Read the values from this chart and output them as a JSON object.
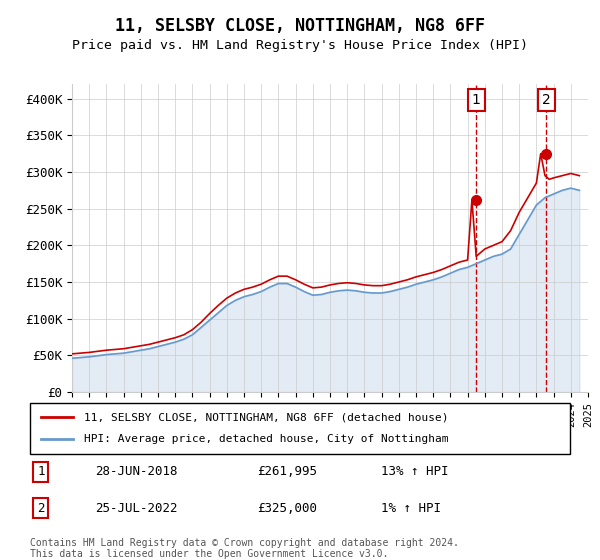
{
  "title": "11, SELSBY CLOSE, NOTTINGHAM, NG8 6FF",
  "subtitle": "Price paid vs. HM Land Registry's House Price Index (HPI)",
  "xlabel": "",
  "ylabel": "",
  "ylim": [
    0,
    420000
  ],
  "yticks": [
    0,
    50000,
    100000,
    150000,
    200000,
    250000,
    300000,
    350000,
    400000
  ],
  "ytick_labels": [
    "£0",
    "£50K",
    "£100K",
    "£150K",
    "£200K",
    "£250K",
    "£300K",
    "£350K",
    "£400K"
  ],
  "line1_color": "#cc0000",
  "line2_color": "#6699cc",
  "marker_color": "#cc0000",
  "annotation_bg": "#ddeeff",
  "annotation_border": "#cc0000",
  "sale1_date": "28-JUN-2018",
  "sale1_price": 261995,
  "sale1_hpi": "13% ↑ HPI",
  "sale2_date": "25-JUL-2022",
  "sale2_price": 325000,
  "sale2_hpi": "1% ↑ HPI",
  "legend_label1": "11, SELSBY CLOSE, NOTTINGHAM, NG8 6FF (detached house)",
  "legend_label2": "HPI: Average price, detached house, City of Nottingham",
  "footer": "Contains HM Land Registry data © Crown copyright and database right 2024.\nThis data is licensed under the Open Government Licence v3.0.",
  "hpi_years": [
    1995,
    1995.5,
    1996,
    1996.5,
    1997,
    1997.5,
    1998,
    1998.5,
    1999,
    1999.5,
    2000,
    2000.5,
    2001,
    2001.5,
    2002,
    2002.5,
    2003,
    2003.5,
    2004,
    2004.5,
    2005,
    2005.5,
    2006,
    2006.5,
    2007,
    2007.5,
    2008,
    2008.5,
    2009,
    2009.5,
    2010,
    2010.5,
    2011,
    2011.5,
    2012,
    2012.5,
    2013,
    2013.5,
    2014,
    2014.5,
    2015,
    2015.5,
    2016,
    2016.5,
    2017,
    2017.5,
    2018,
    2018.5,
    2019,
    2019.5,
    2020,
    2020.5,
    2021,
    2021.5,
    2022,
    2022.5,
    2023,
    2023.5,
    2024,
    2024.5
  ],
  "hpi_values": [
    46000,
    47000,
    48000,
    49500,
    51000,
    52000,
    53000,
    55000,
    57000,
    59000,
    62000,
    65000,
    68000,
    72000,
    78000,
    88000,
    98000,
    108000,
    118000,
    125000,
    130000,
    133000,
    137000,
    143000,
    148000,
    148000,
    143000,
    137000,
    132000,
    133000,
    136000,
    138000,
    139000,
    138000,
    136000,
    135000,
    135000,
    137000,
    140000,
    143000,
    147000,
    150000,
    153000,
    157000,
    162000,
    167000,
    170000,
    175000,
    180000,
    185000,
    188000,
    195000,
    215000,
    235000,
    255000,
    265000,
    270000,
    275000,
    278000,
    275000
  ],
  "property_years": [
    1995,
    1995.5,
    1996,
    1996.5,
    1997,
    1997.5,
    1998,
    1998.5,
    1999,
    1999.5,
    2000,
    2000.5,
    2001,
    2001.5,
    2002,
    2002.5,
    2003,
    2003.5,
    2004,
    2004.5,
    2005,
    2005.5,
    2006,
    2006.5,
    2007,
    2007.5,
    2008,
    2008.5,
    2009,
    2009.5,
    2010,
    2010.5,
    2011,
    2011.5,
    2012,
    2012.5,
    2013,
    2013.5,
    2014,
    2014.5,
    2015,
    2015.5,
    2016,
    2016.5,
    2017,
    2017.5,
    2018,
    2018.25,
    2018.5,
    2018.75,
    2019,
    2019.5,
    2020,
    2020.5,
    2021,
    2021.5,
    2022,
    2022.25,
    2022.5,
    2022.75,
    2023,
    2023.5,
    2024,
    2024.5
  ],
  "property_values": [
    52000,
    53000,
    54000,
    55500,
    57000,
    58000,
    59000,
    61000,
    63000,
    65000,
    68000,
    71000,
    74000,
    78000,
    85000,
    95000,
    107000,
    118000,
    128000,
    135000,
    140000,
    143000,
    147000,
    153000,
    158000,
    158000,
    153000,
    147000,
    142000,
    143000,
    146000,
    148000,
    149000,
    148000,
    146000,
    145000,
    145000,
    147000,
    150000,
    153000,
    157000,
    160000,
    163000,
    167000,
    172000,
    177000,
    180000,
    261995,
    185000,
    190000,
    195000,
    200000,
    205000,
    220000,
    245000,
    265000,
    285000,
    325000,
    295000,
    290000,
    292000,
    295000,
    298000,
    295000
  ],
  "sale1_year": 2018.5,
  "sale2_year": 2022.5,
  "xmin": 1995,
  "xmax": 2025
}
